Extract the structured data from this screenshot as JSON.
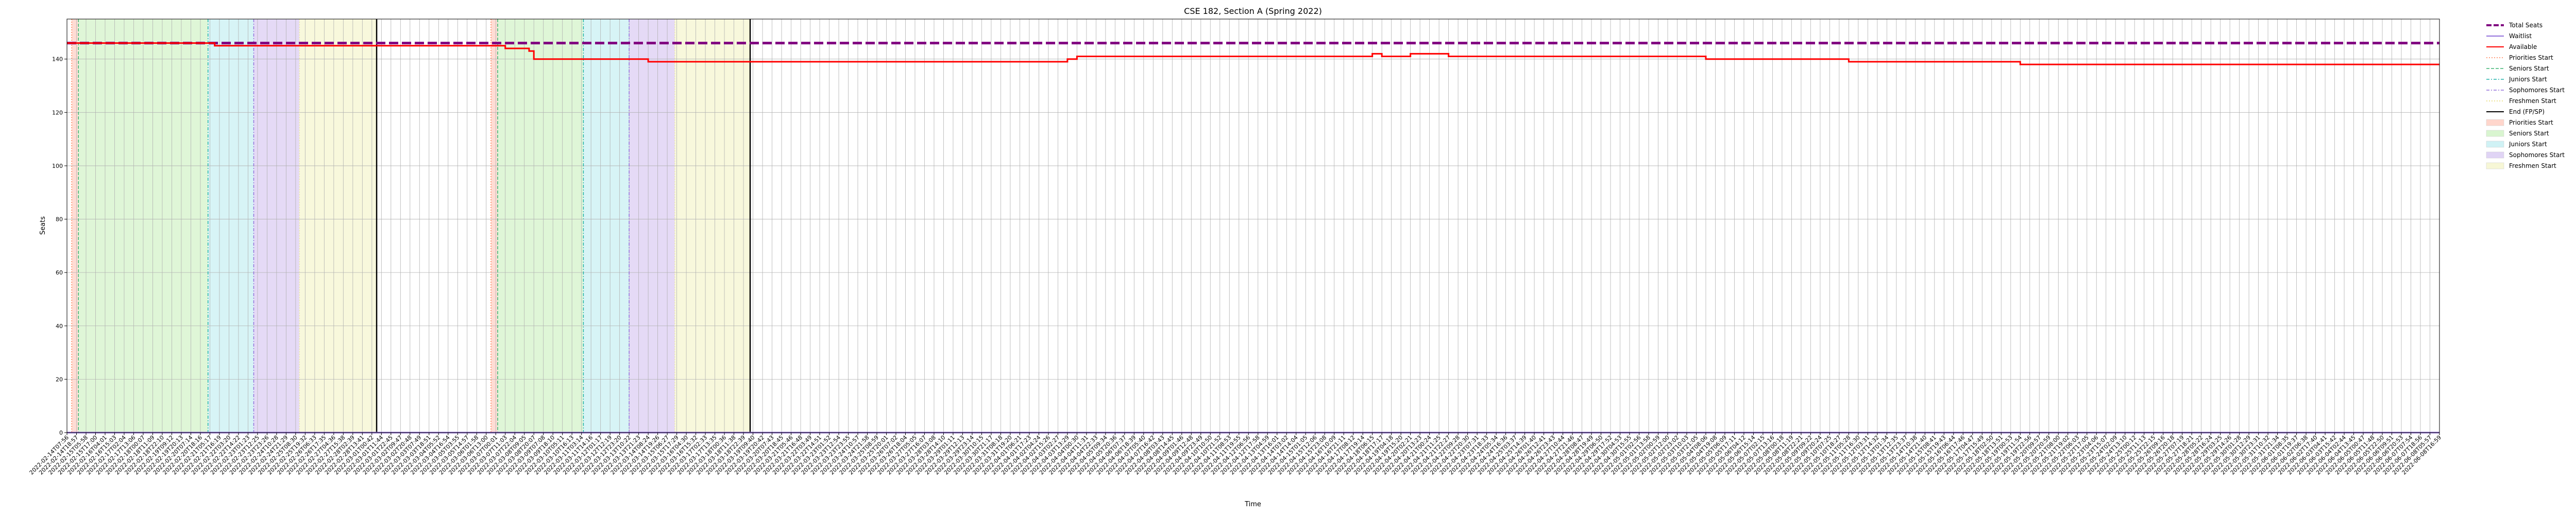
{
  "chart_data": {
    "type": "line",
    "title": "CSE 182, Section A (Spring 2022)",
    "xlabel": "Time",
    "ylabel": "Seats",
    "ylim": [
      0,
      155
    ],
    "yticks": [
      0,
      20,
      40,
      60,
      80,
      100,
      120,
      140
    ],
    "grid": true,
    "legend_placement": "outside-top-right",
    "x_first_label": "2022-02-14T07:56",
    "x_last_label": "2022-06-08T16:59",
    "x_tick_count": 250,
    "series": [
      {
        "name": "Total Seats",
        "color": "#800080",
        "style": "dashed",
        "x": [
          0,
          249
        ],
        "y": [
          146,
          146
        ]
      },
      {
        "name": "Waitlist",
        "color": "#9370db",
        "style": "solid",
        "x": [
          0,
          249
        ],
        "y": [
          0,
          0
        ]
      },
      {
        "name": "Available",
        "color": "#ff0000",
        "style": "solid",
        "x": [
          0,
          15,
          15.5,
          30,
          45,
          46,
          46.5,
          48.5,
          49,
          54,
          60.5,
          61,
          105,
          106,
          137,
          138,
          140,
          141,
          144,
          145,
          171,
          172,
          186,
          187,
          204,
          205,
          237,
          238,
          249
        ],
        "y": [
          146,
          146,
          145,
          145,
          145,
          144,
          144,
          143,
          140,
          140,
          140,
          139,
          140,
          141,
          142,
          141,
          141,
          142,
          142,
          141,
          141,
          140,
          140,
          139,
          139,
          138,
          138,
          138,
          138
        ]
      }
    ],
    "markers": [
      {
        "name": "Priorities Start",
        "color": "#ff7f50",
        "style": "dotted",
        "positions": [
          0.5,
          44.5
        ]
      },
      {
        "name": "Seniors Start",
        "color": "#3cb371",
        "style": "dashed",
        "positions": [
          1.2,
          45.2
        ]
      },
      {
        "name": "Juniors Start",
        "color": "#20b2aa",
        "style": "dashdot",
        "positions": [
          14.8,
          54.2
        ]
      },
      {
        "name": "Sophomores Start",
        "color": "#9370db",
        "style": "dashdot",
        "positions": [
          19.6,
          59.0
        ]
      },
      {
        "name": "Freshmen Start",
        "color": "#eee8aa",
        "style": "dotted",
        "positions": [
          24.4,
          63.8
        ]
      },
      {
        "name": "End (FP/SP)",
        "color": "#000000",
        "style": "solid",
        "positions": [
          32.5,
          71.7
        ]
      }
    ],
    "spans": [
      {
        "name": "Priorities Start",
        "color": "#ffd6cc",
        "ranges": [
          [
            0.5,
            1.2
          ],
          [
            44.5,
            45.2
          ]
        ]
      },
      {
        "name": "Seniors Start",
        "color": "#d9f5d0",
        "ranges": [
          [
            1.2,
            14.8
          ],
          [
            45.2,
            54.2
          ]
        ]
      },
      {
        "name": "Juniors Start",
        "color": "#d0f2f5",
        "ranges": [
          [
            14.8,
            19.6
          ],
          [
            54.2,
            59.0
          ]
        ]
      },
      {
        "name": "Sophomores Start",
        "color": "#e0d4f5",
        "ranges": [
          [
            19.6,
            24.4
          ],
          [
            59.0,
            63.8
          ]
        ]
      },
      {
        "name": "Freshmen Start",
        "color": "#f7f7d6",
        "ranges": [
          [
            24.4,
            32.5
          ],
          [
            63.8,
            71.7
          ]
        ]
      }
    ],
    "legend": [
      {
        "label": "Total Seats",
        "kind": "line",
        "color": "#800080",
        "dash": "10,4",
        "width": 4
      },
      {
        "label": "Waitlist",
        "kind": "line",
        "color": "#9370db",
        "dash": "",
        "width": 2
      },
      {
        "label": "Available",
        "kind": "line",
        "color": "#ff0000",
        "dash": "",
        "width": 2
      },
      {
        "label": "Priorities Start",
        "kind": "line",
        "color": "#ff7f50",
        "dash": "2,3",
        "width": 1.5
      },
      {
        "label": "Seniors Start",
        "kind": "line",
        "color": "#3cb371",
        "dash": "6,3",
        "width": 1.5
      },
      {
        "label": "Juniors Start",
        "kind": "line",
        "color": "#20b2aa",
        "dash": "6,3,2,3",
        "width": 1.5
      },
      {
        "label": "Sophomores Start",
        "kind": "line",
        "color": "#9370db",
        "dash": "6,3,2,3",
        "width": 1.5
      },
      {
        "label": "Freshmen Start",
        "kind": "line",
        "color": "#e6d86e",
        "dash": "2,3",
        "width": 1.5
      },
      {
        "label": "End (FP/SP)",
        "kind": "line",
        "color": "#000000",
        "dash": "",
        "width": 2
      },
      {
        "label": "Priorities Start",
        "kind": "patch",
        "color": "#ffd6cc"
      },
      {
        "label": "Seniors Start",
        "kind": "patch",
        "color": "#d9f5d0"
      },
      {
        "label": "Juniors Start",
        "kind": "patch",
        "color": "#d0f2f5"
      },
      {
        "label": "Sophomores Start",
        "kind": "patch",
        "color": "#e0d4f5"
      },
      {
        "label": "Freshmen Start",
        "kind": "patch",
        "color": "#f7f7d6"
      }
    ]
  }
}
